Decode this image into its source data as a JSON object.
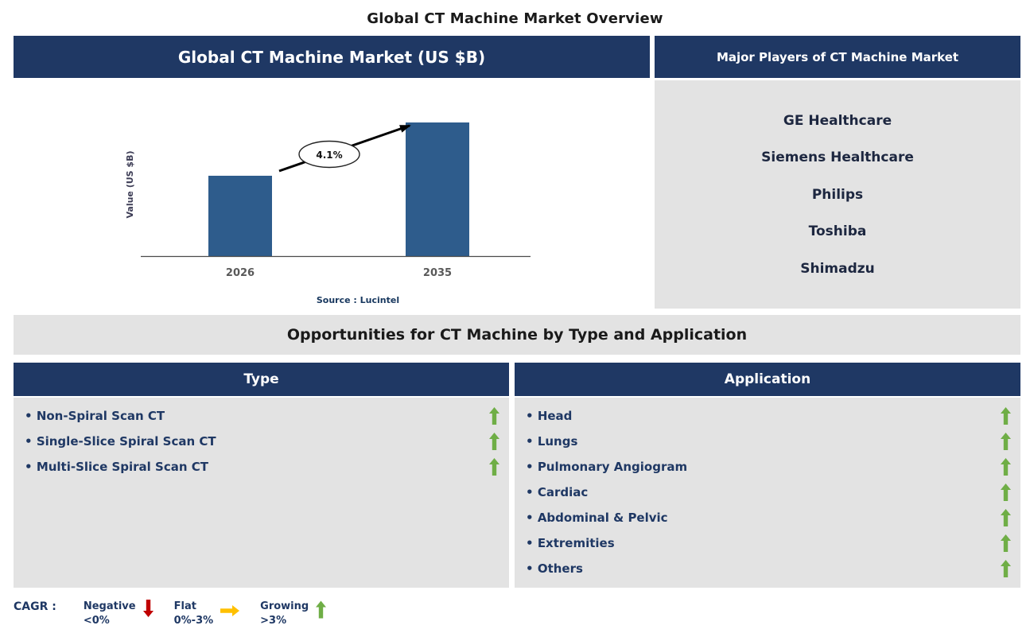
{
  "page_title": "Global CT Machine Market Overview",
  "market_chart": {
    "header": "Global CT Machine Market (US $B)",
    "ylabel": "Value (US $B)",
    "source": "Source : Lucintel",
    "cagr_annotation": "4.1%"
  },
  "chart_data": {
    "type": "bar",
    "title": "Global CT Machine Market (US $B)",
    "categories": [
      "2026",
      "2035"
    ],
    "values_relative": [
      0.6,
      1.0
    ],
    "ylabel": "Value (US $B)",
    "xlabel": "",
    "annotations": [
      "4.1%"
    ],
    "source": "Source : Lucintel",
    "axis_values_shown": false,
    "grid": false,
    "bar_color": "#2E5C8C"
  },
  "major_players": {
    "header": "Major Players of CT Machine Market",
    "items": [
      "GE Healthcare",
      "Siemens Healthcare",
      "Philips",
      "Toshiba",
      "Shimadzu"
    ]
  },
  "opportunities": {
    "title": "Opportunities for CT Machine by Type and Application",
    "type": {
      "header": "Type",
      "items": [
        "Non-Spiral Scan CT",
        "Single-Slice Spiral Scan CT",
        "Multi-Slice Spiral Scan CT"
      ]
    },
    "application": {
      "header": "Application",
      "items": [
        "Head",
        "Lungs",
        "Pulmonary Angiogram",
        "Cardiac",
        "Abdominal & Pelvic",
        "Extremities",
        "Others"
      ]
    }
  },
  "legend": {
    "label": "CAGR :",
    "negative": {
      "label": "Negative",
      "range": "<0%"
    },
    "flat": {
      "label": "Flat",
      "range": "0%-3%"
    },
    "growing": {
      "label": "Growing",
      "range": ">3%"
    }
  },
  "colors": {
    "header_navy": "#1F3864",
    "panel_gray": "#E3E3E3",
    "bar_blue": "#2E5C8C",
    "growing_green": "#6FAE46",
    "negative_red": "#C00000",
    "flat_yellow": "#FFC000"
  }
}
